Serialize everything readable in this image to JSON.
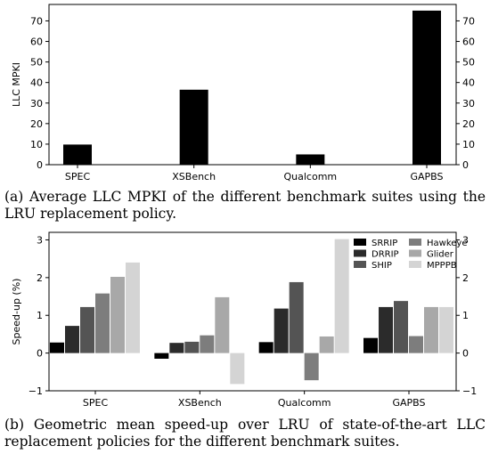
{
  "chart_data": [
    {
      "type": "bar",
      "categories": [
        "SPEC",
        "XSBench",
        "Qualcomm",
        "GAPBS"
      ],
      "series": [
        {
          "values": [
            9.8,
            36.5,
            5.0,
            75.0
          ],
          "color": "#000000"
        }
      ],
      "ylabel": "LLC MPKI",
      "ylim": [
        0,
        78
      ],
      "yticks": [
        0,
        10,
        20,
        30,
        40,
        50,
        60,
        70
      ],
      "right_axis_ticks": true,
      "grid": false,
      "caption": "(a) Average LLC MPKI of the different benchmark suites using the LRU replacement policy."
    },
    {
      "type": "bar",
      "categories": [
        "SPEC",
        "XSBench",
        "Qualcomm",
        "GAPBS"
      ],
      "series": [
        {
          "name": "SRRIP",
          "color": "#000000",
          "values": [
            0.28,
            -0.15,
            0.29,
            0.4
          ]
        },
        {
          "name": "DRRIP",
          "color": "#2b2b2b",
          "values": [
            0.72,
            0.27,
            1.18,
            1.22
          ]
        },
        {
          "name": "SHIP",
          "color": "#545454",
          "values": [
            1.22,
            0.3,
            1.88,
            1.38
          ]
        },
        {
          "name": "Hawkeye",
          "color": "#7d7d7d",
          "values": [
            1.58,
            0.47,
            -0.72,
            0.45
          ]
        },
        {
          "name": "Glider",
          "color": "#a8a8a8",
          "values": [
            2.02,
            1.48,
            0.44,
            1.22
          ]
        },
        {
          "name": "MPPPB",
          "color": "#d4d4d4",
          "values": [
            2.4,
            -0.82,
            3.02,
            1.22
          ]
        }
      ],
      "ylabel": "Speed-up (%)",
      "ylim": [
        -1,
        3.2
      ],
      "yticks": [
        -1,
        0,
        1,
        2,
        3
      ],
      "right_axis_ticks": true,
      "grid": false,
      "legend": "top-right, 3 rows x 2 columns",
      "caption": "(b) Geometric mean speed-up over LRU of state-of-the-art LLC replacement policies for the different benchmark suites."
    }
  ]
}
